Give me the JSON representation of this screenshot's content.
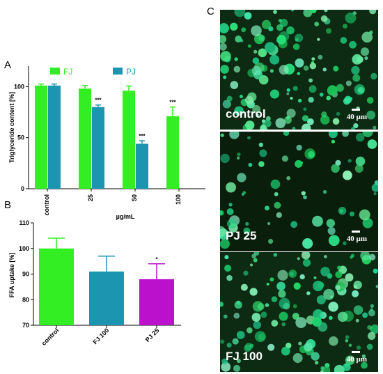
{
  "panels": {
    "A": "A",
    "B": "B",
    "C": "C"
  },
  "chart_data": [
    {
      "type": "bar",
      "panel": "A",
      "xlabel": "µg/mL",
      "ylabel": "Triglyceride content [%]",
      "categories": [
        "control",
        "25",
        "50",
        "100"
      ],
      "ylim": [
        0,
        120
      ],
      "yticks": [
        0,
        50,
        100
      ],
      "legend_position": "top",
      "series": [
        {
          "name": "FJ",
          "color": "#33ee22",
          "values": [
            101,
            98,
            96,
            71
          ],
          "errors": [
            1.5,
            3,
            4.5,
            9
          ],
          "significance": [
            "",
            "",
            "",
            "***"
          ]
        },
        {
          "name": "PJ",
          "color": "#1b95b0",
          "values": [
            101,
            80,
            44,
            null
          ],
          "errors": [
            1.5,
            2,
            3,
            null
          ],
          "significance": [
            "",
            "***",
            "***",
            ""
          ]
        }
      ]
    },
    {
      "type": "bar",
      "panel": "B",
      "xlabel": "",
      "ylabel": "FFA uptake [%]",
      "categories": [
        "control",
        "FJ 100",
        "PJ 25"
      ],
      "ylim": [
        70,
        110
      ],
      "yticks": [
        70,
        80,
        90,
        100,
        110
      ],
      "values": [
        100,
        91,
        88
      ],
      "errors": [
        4,
        6,
        6
      ],
      "colors": [
        "#33ee22",
        "#1b95b0",
        "#bb11cc"
      ],
      "significance": [
        "",
        "",
        "*"
      ]
    }
  ],
  "micrographs": [
    {
      "label": "control",
      "scale": "40 µm"
    },
    {
      "label": "PJ 25",
      "scale": "40 µm"
    },
    {
      "label": "FJ 100",
      "scale": "40 µm"
    }
  ]
}
